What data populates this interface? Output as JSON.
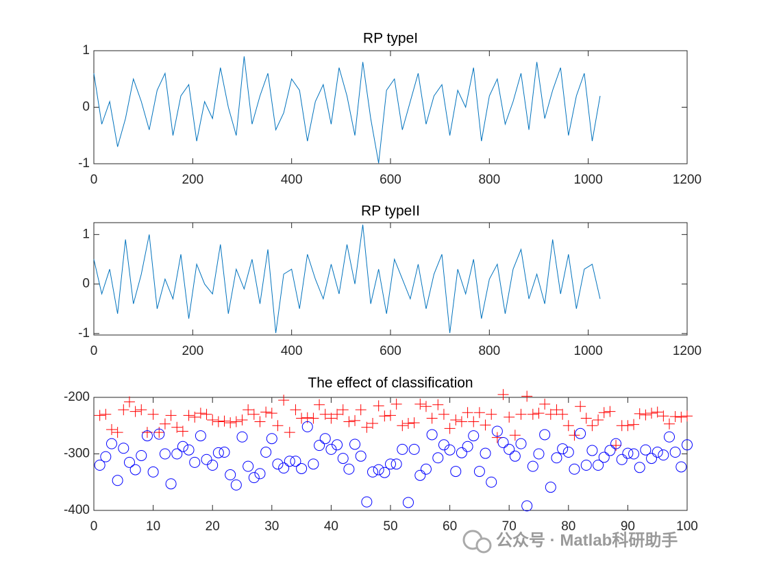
{
  "chart_data": [
    {
      "type": "line",
      "title": "RP typeI",
      "x": [
        0,
        16,
        32,
        48,
        64,
        80,
        96,
        112,
        128,
        144,
        160,
        176,
        192,
        208,
        224,
        240,
        256,
        272,
        288,
        304,
        320,
        336,
        352,
        368,
        384,
        400,
        416,
        432,
        448,
        464,
        480,
        496,
        512,
        528,
        544,
        560,
        576,
        592,
        608,
        624,
        640,
        656,
        672,
        688,
        704,
        720,
        736,
        752,
        768,
        784,
        800,
        816,
        832,
        848,
        864,
        880,
        896,
        912,
        928,
        944,
        960,
        976,
        992,
        1008,
        1024
      ],
      "series": [
        {
          "color": "#0072bd",
          "values": [
            0.6,
            -0.3,
            0.1,
            -0.7,
            -0.2,
            0.5,
            0.1,
            -0.4,
            0.3,
            0.6,
            -0.5,
            0.2,
            0.4,
            -0.6,
            0.1,
            -0.2,
            0.7,
            0,
            -0.5,
            0.9,
            -0.3,
            0.2,
            0.6,
            -0.4,
            -0.1,
            0.5,
            0.3,
            -0.6,
            0.1,
            0.4,
            -0.3,
            0.7,
            0.2,
            -0.5,
            0.8,
            -0.2,
            -0.99,
            0.3,
            0.5,
            -0.4,
            0.1,
            0.6,
            -0.3,
            0.2,
            0.4,
            -0.5,
            0.3,
            0,
            0.7,
            -0.6,
            0.2,
            0.5,
            -0.3,
            0.1,
            0.6,
            -0.4,
            0.8,
            -0.2,
            0.3,
            0.7,
            -0.5,
            0.2,
            0.6,
            -0.6,
            0.2
          ]
        }
      ],
      "xlim": [
        0,
        1200
      ],
      "xticks": [
        0,
        200,
        400,
        600,
        800,
        1000,
        1200
      ],
      "ylim": [
        -1,
        1
      ],
      "yticks": [
        -1,
        0,
        1
      ]
    },
    {
      "type": "line",
      "title": "RP typeII",
      "x": [
        0,
        16,
        32,
        48,
        64,
        80,
        96,
        112,
        128,
        144,
        160,
        176,
        192,
        208,
        224,
        240,
        256,
        272,
        288,
        304,
        320,
        336,
        352,
        368,
        384,
        400,
        416,
        432,
        448,
        464,
        480,
        496,
        512,
        528,
        544,
        560,
        576,
        592,
        608,
        624,
        640,
        656,
        672,
        688,
        704,
        720,
        736,
        752,
        768,
        784,
        800,
        816,
        832,
        848,
        864,
        880,
        896,
        912,
        928,
        944,
        960,
        976,
        992,
        1008,
        1024
      ],
      "series": [
        {
          "color": "#0072bd",
          "values": [
            0.5,
            -0.2,
            0.3,
            -0.6,
            0.9,
            -0.4,
            0.2,
            1.0,
            -0.5,
            0.1,
            -0.3,
            0.6,
            -0.7,
            0.4,
            0,
            -0.2,
            0.8,
            -0.6,
            0.3,
            -0.1,
            0.5,
            -0.4,
            0.7,
            -0.99,
            0.2,
            0.3,
            -0.5,
            0.6,
            0.1,
            -0.3,
            0.4,
            -0.2,
            0.8,
            0,
            1.2,
            -0.4,
            0.3,
            -0.6,
            0.5,
            0.1,
            -0.3,
            0.4,
            -0.5,
            0.2,
            0.6,
            -0.99,
            0.3,
            -0.2,
            0.5,
            -0.7,
            0.1,
            0.4,
            -0.6,
            0.3,
            0.7,
            -0.3,
            0.2,
            -0.4,
            0.9,
            -0.2,
            0.6,
            -0.5,
            0.3,
            0.4,
            -0.3
          ]
        }
      ],
      "xlim": [
        0,
        1200
      ],
      "xticks": [
        0,
        200,
        400,
        600,
        800,
        1000,
        1200
      ],
      "ylim": [
        -1.03,
        1.24
      ],
      "yticks": [
        -1,
        0,
        1
      ]
    },
    {
      "type": "scatter",
      "title": "The effect of classification",
      "x": [
        1,
        2,
        3,
        4,
        5,
        6,
        7,
        8,
        9,
        10,
        11,
        12,
        13,
        14,
        15,
        16,
        17,
        18,
        19,
        20,
        21,
        22,
        23,
        24,
        25,
        26,
        27,
        28,
        29,
        30,
        31,
        32,
        33,
        34,
        35,
        36,
        37,
        38,
        39,
        40,
        41,
        42,
        43,
        44,
        45,
        46,
        47,
        48,
        49,
        50,
        51,
        52,
        53,
        54,
        55,
        56,
        57,
        58,
        59,
        60,
        61,
        62,
        63,
        64,
        65,
        66,
        67,
        68,
        69,
        70,
        71,
        72,
        73,
        74,
        75,
        76,
        77,
        78,
        79,
        80,
        81,
        82,
        83,
        84,
        85,
        86,
        87,
        88,
        89,
        90,
        91,
        92,
        93,
        94,
        95,
        96,
        97,
        98,
        99,
        100
      ],
      "series": [
        {
          "color": "#ff0000",
          "marker": "+",
          "values": [
            -232,
            -230,
            -257,
            -262,
            -222,
            -208,
            -225,
            -222,
            -262,
            -230,
            -262,
            -247,
            -232,
            -253,
            -260,
            -232,
            -235,
            -228,
            -230,
            -240,
            -243,
            -242,
            -245,
            -243,
            -240,
            -222,
            -230,
            -243,
            -226,
            -228,
            -250,
            -205,
            -262,
            -222,
            -237,
            -236,
            -237,
            -213,
            -230,
            -237,
            -230,
            -222,
            -243,
            -241,
            -222,
            -253,
            -246,
            -215,
            -233,
            -232,
            -212,
            -250,
            -246,
            -245,
            -212,
            -216,
            -237,
            -213,
            -230,
            -255,
            -240,
            -243,
            -227,
            -243,
            -227,
            -249,
            -230,
            -271,
            -195,
            -235,
            -267,
            -230,
            -198,
            -230,
            -228,
            -212,
            -230,
            -222,
            -230,
            -250,
            -267,
            -216,
            -237,
            -250,
            -240,
            -227,
            -225,
            -285,
            -250,
            -250,
            -248,
            -229,
            -231,
            -228,
            -226,
            -233,
            -247,
            -234,
            -235,
            -233
          ]
        },
        {
          "color": "#0000ff",
          "marker": "o",
          "values": [
            -320,
            -305,
            -282,
            -347,
            -290,
            -315,
            -328,
            -303,
            -268,
            -332,
            -265,
            -300,
            -353,
            -300,
            -287,
            -293,
            -315,
            -268,
            -310,
            -320,
            -298,
            -297,
            -337,
            -355,
            -270,
            -322,
            -342,
            -335,
            -297,
            -273,
            -318,
            -325,
            -313,
            -313,
            -326,
            -252,
            -318,
            -285,
            -273,
            -292,
            -284,
            -308,
            -327,
            -283,
            -304,
            -385,
            -332,
            -328,
            -333,
            -318,
            -318,
            -292,
            -386,
            -292,
            -338,
            -327,
            -266,
            -307,
            -284,
            -293,
            -331,
            -298,
            -287,
            -268,
            -331,
            -299,
            -350,
            -260,
            -280,
            -292,
            -304,
            -282,
            -392,
            -322,
            -300,
            -266,
            -359,
            -307,
            -291,
            -297,
            -327,
            -264,
            -320,
            -294,
            -320,
            -306,
            -294,
            -282,
            -310,
            -299,
            -300,
            -324,
            -293,
            -308,
            -297,
            -302,
            -270,
            -297,
            -323,
            -284
          ]
        }
      ],
      "xlim": [
        0,
        100
      ],
      "xticks": [
        0,
        10,
        20,
        30,
        40,
        50,
        60,
        70,
        80,
        90,
        100
      ],
      "ylim": [
        -400,
        -200
      ],
      "yticks": [
        -400,
        -300,
        -200
      ]
    }
  ],
  "watermark": "公众号 · Matlab科研助手"
}
